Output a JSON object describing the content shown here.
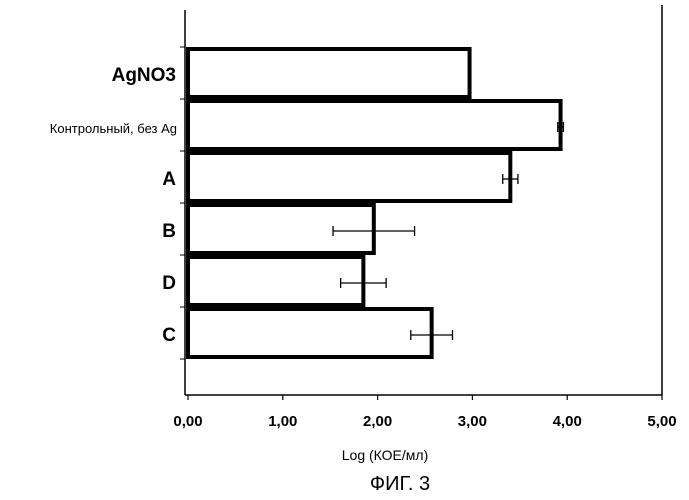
{
  "chart_data": {
    "type": "bar",
    "orientation": "horizontal",
    "categories": [
      "AgNO3",
      "Контрольный, без Ag",
      "A",
      "B",
      "D",
      "C"
    ],
    "values": [
      2.97,
      3.93,
      3.4,
      1.96,
      1.85,
      2.57
    ],
    "errors": [
      null,
      0.03,
      0.08,
      0.43,
      0.24,
      0.22
    ],
    "xlim": [
      0,
      5
    ],
    "xticks": [
      "0,00",
      "1,00",
      "2,00",
      "3,00",
      "4,00",
      "5,00"
    ],
    "xlabel": "Log (КОЕ/мл)",
    "bar_fill": "#ffffff",
    "bar_stroke": "#000000",
    "grid": false
  },
  "caption": "ФИГ. 3"
}
